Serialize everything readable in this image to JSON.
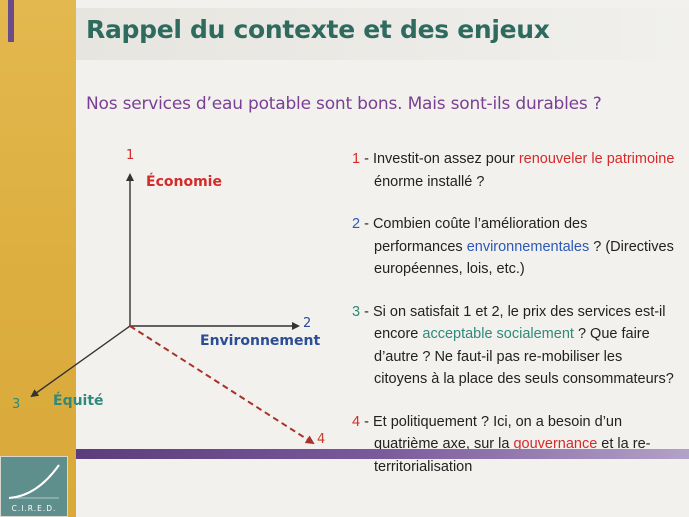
{
  "slide": {
    "title": "Rappel du contexte et des enjeux",
    "subtitle": "Nos services d’eau potable sont bons. Mais sont-ils durables ?"
  },
  "diagram": {
    "axis1_number": "1",
    "axis1_label": "Économie",
    "axis2_number": "2",
    "axis2_label": "Environnement",
    "axis3_number": "3",
    "axis3_label": "Équité",
    "axis4_number": "4"
  },
  "items": [
    {
      "num": "1",
      "pre": " - Investit-on assez pour ",
      "hl": "renouveler le patrimoine",
      "post": " énorme installé ?"
    },
    {
      "num": "2",
      "pre": " - Combien coûte l’amélioration des performances ",
      "hl": "environnementales",
      "post": " ? (Directives européennes, lois, etc.)"
    },
    {
      "num": "3",
      "pre": " - Si on satisfait 1 et 2, le prix des services est-il encore ",
      "hl": "acceptable socialement",
      "post": " ? Que faire d’autre ? Ne faut-il pas re-mobiliser les citoyens à la place des seuls consommateurs?"
    },
    {
      "num": "4",
      "pre": " - Et politiquement ? Ici, on a besoin d’un quatrième axe, sur la ",
      "hl": "gouvernance",
      "post": " et la re-territorialisation"
    }
  ],
  "logo": {
    "text": "C.I.R.E.D."
  },
  "colors": {
    "gold": "#dcae3f",
    "purple": "#6b4c8a",
    "title_green": "#2e6b5e",
    "subtitle_purple": "#7a3f95",
    "red": "#d52a2a",
    "blue": "#2b59b5",
    "teal": "#2e8a7a"
  }
}
